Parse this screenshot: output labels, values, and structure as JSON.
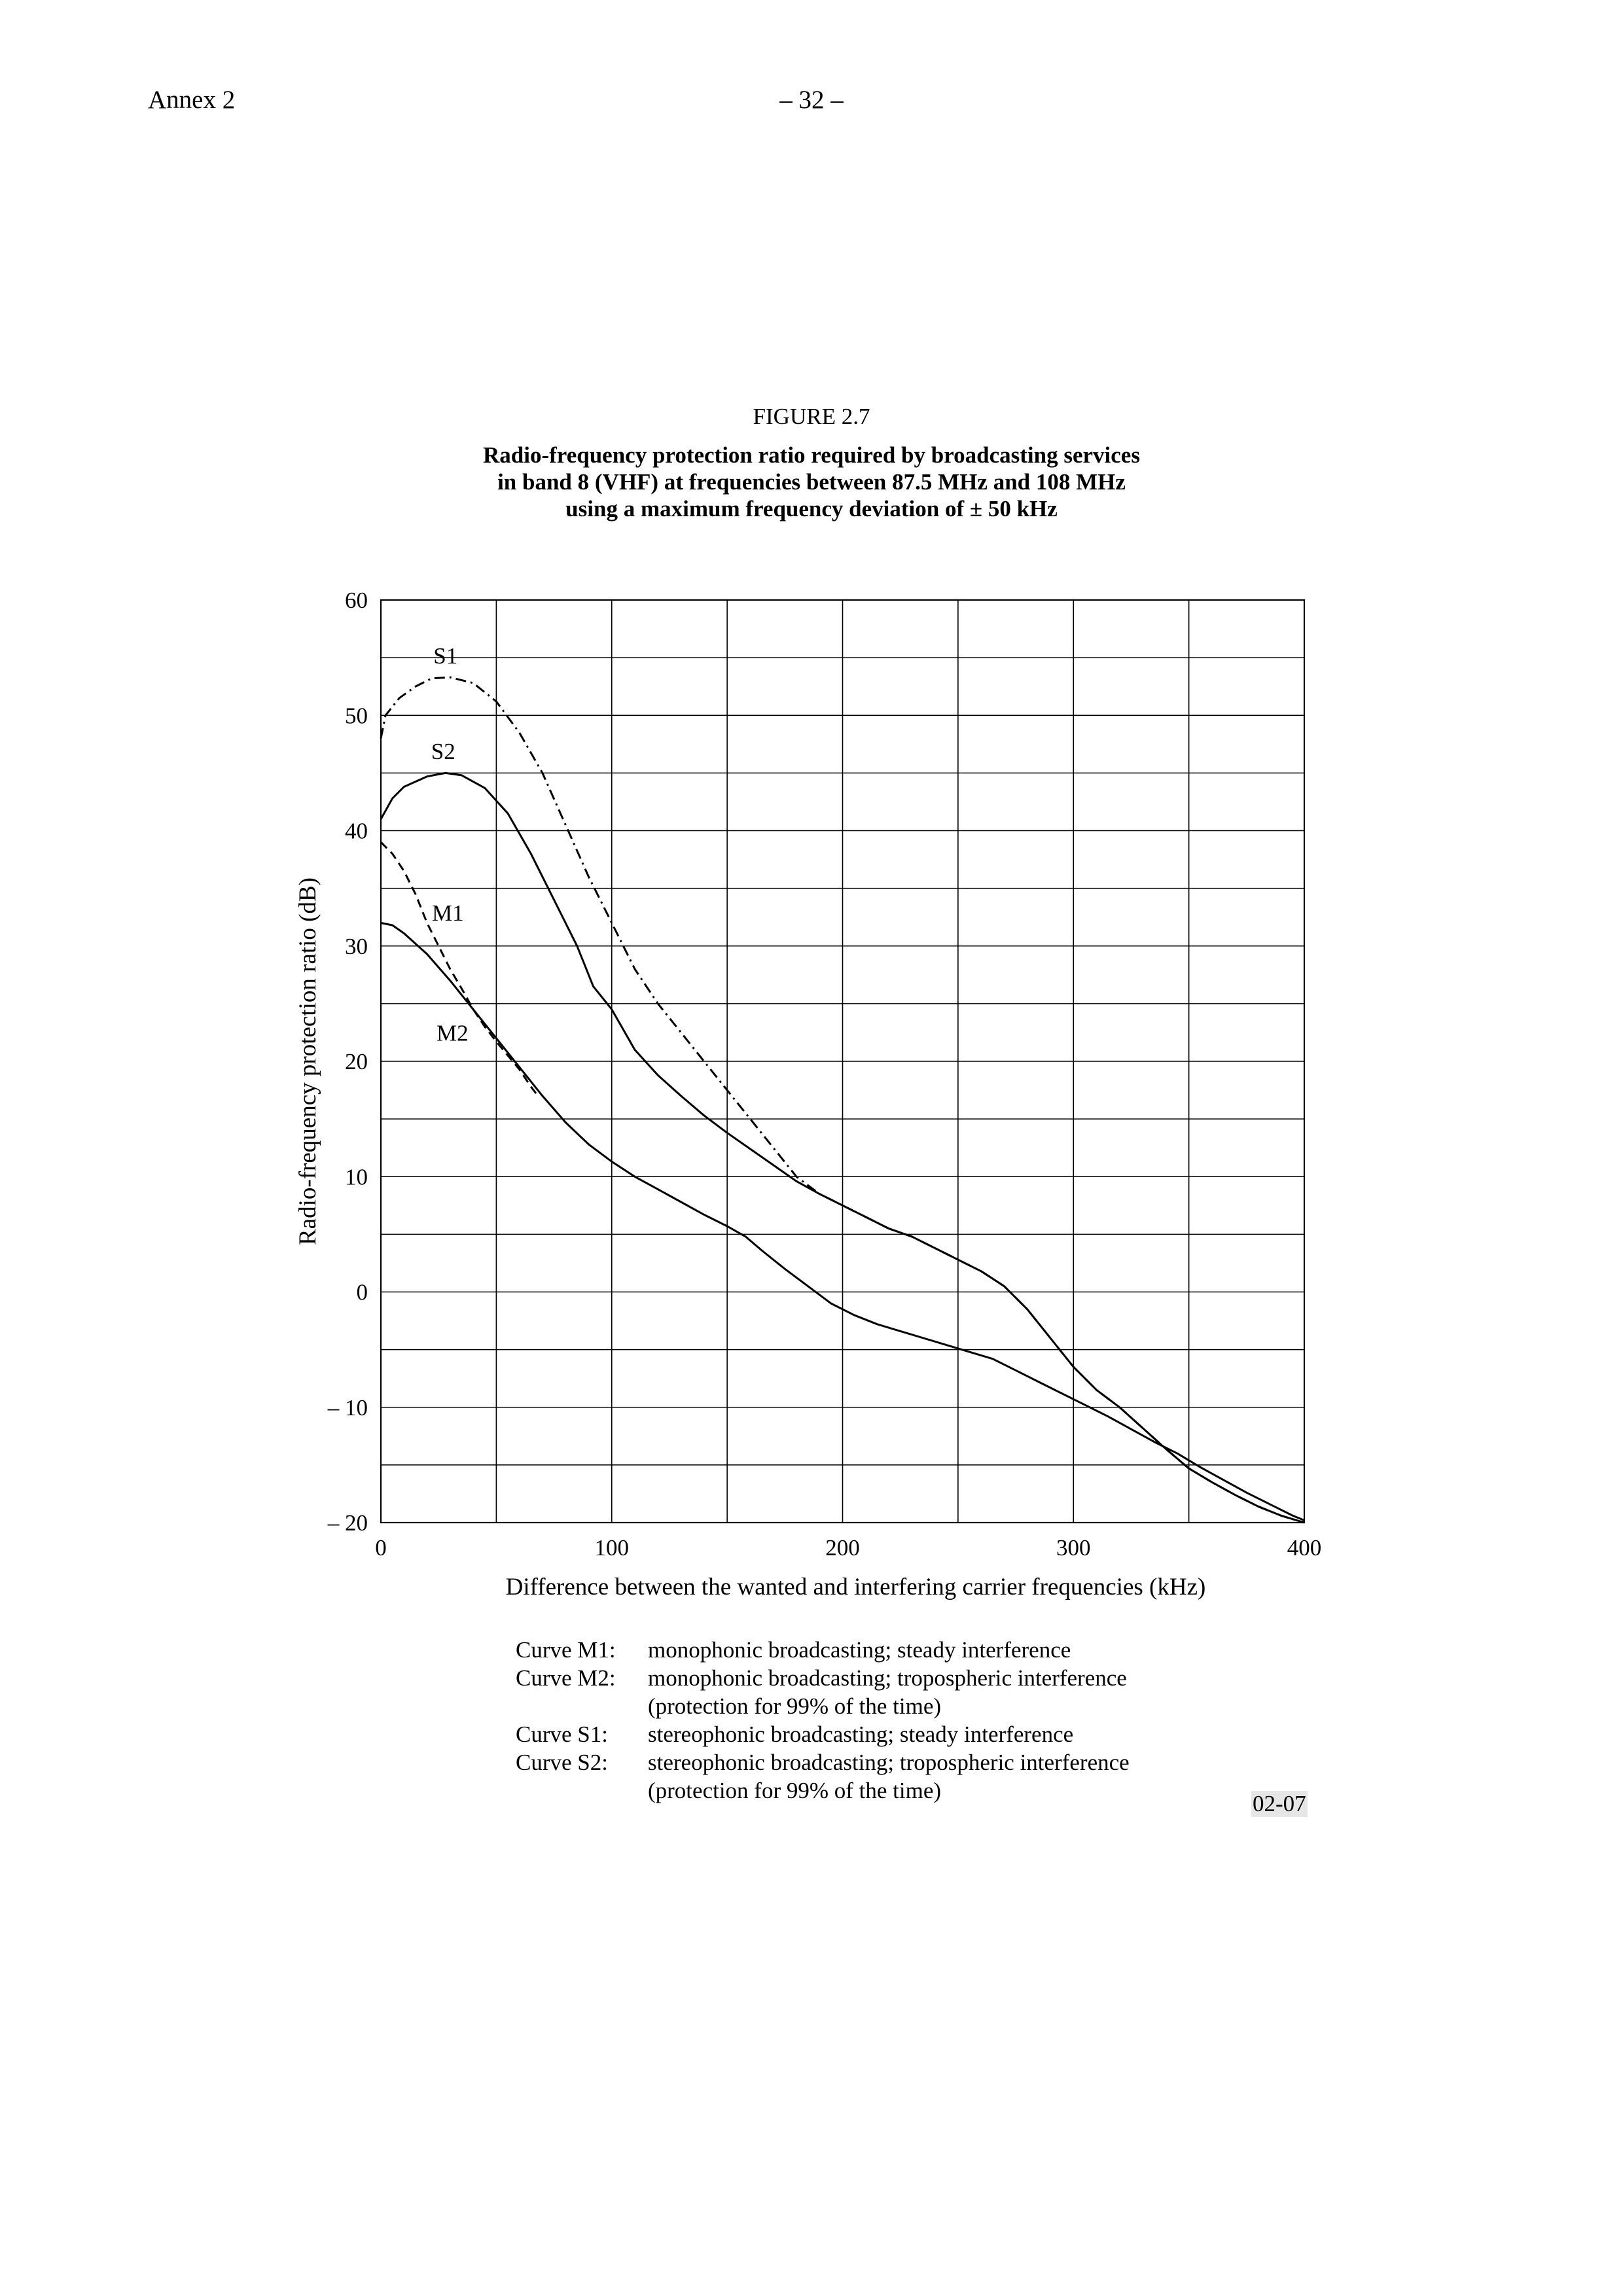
{
  "header": {
    "annex": "Annex 2",
    "page": "– 32 –"
  },
  "figure": {
    "number": "FIGURE 2.7",
    "title_lines": [
      "Radio-frequency protection ratio required by broadcasting services",
      "in band 8 (VHF) at frequencies between 87.5 MHz and 108 MHz",
      "using a maximum frequency deviation of ± 50 kHz"
    ],
    "code": "02-07"
  },
  "chart_data": {
    "type": "line",
    "xlabel": "Difference between the wanted and interfering carrier frequencies (kHz)",
    "ylabel": "Radio-frequency protection ratio (dB)",
    "xlim": [
      0,
      400
    ],
    "ylim": [
      -20,
      60
    ],
    "x_ticks": [
      0,
      100,
      200,
      300,
      400
    ],
    "y_ticks": [
      60,
      50,
      40,
      30,
      20,
      10,
      0,
      -10,
      -20
    ],
    "y_tick_labels": [
      "60",
      "50",
      "40",
      "30",
      "20",
      "10",
      "0",
      "– 10",
      "– 20"
    ],
    "x_grid_step": 50,
    "y_grid_step": 5,
    "grid": true,
    "series": [
      {
        "name": "S1",
        "style": "dash-dot",
        "points": [
          [
            0,
            48
          ],
          [
            2,
            50
          ],
          [
            8,
            51.5
          ],
          [
            15,
            52.5
          ],
          [
            22,
            53.2
          ],
          [
            30,
            53.3
          ],
          [
            40,
            52.8
          ],
          [
            50,
            51.2
          ],
          [
            60,
            48.5
          ],
          [
            70,
            45
          ],
          [
            80,
            40.5
          ],
          [
            90,
            36
          ],
          [
            100,
            32
          ],
          [
            110,
            28
          ],
          [
            120,
            25
          ],
          [
            130,
            22.5
          ],
          [
            140,
            20
          ],
          [
            150,
            17.5
          ],
          [
            160,
            15
          ],
          [
            170,
            12.5
          ],
          [
            180,
            10
          ],
          [
            190,
            8.5
          ],
          [
            200,
            7.5
          ],
          [
            210,
            6.5
          ],
          [
            220,
            5.5
          ],
          [
            230,
            4.8
          ],
          [
            240,
            3.8
          ],
          [
            250,
            2.8
          ],
          [
            260,
            1.8
          ],
          [
            270,
            0.5
          ],
          [
            280,
            -1.5
          ],
          [
            290,
            -4
          ],
          [
            300,
            -6.5
          ],
          [
            310,
            -8.5
          ],
          [
            320,
            -10
          ],
          [
            330,
            -11.8
          ],
          [
            340,
            -13.6
          ],
          [
            350,
            -15.3
          ],
          [
            360,
            -16.5
          ],
          [
            370,
            -17.6
          ],
          [
            380,
            -18.6
          ],
          [
            390,
            -19.4
          ],
          [
            400,
            -20
          ]
        ]
      },
      {
        "name": "S2",
        "style": "solid",
        "points": [
          [
            0,
            41
          ],
          [
            5,
            42.8
          ],
          [
            10,
            43.8
          ],
          [
            20,
            44.7
          ],
          [
            28,
            45
          ],
          [
            35,
            44.8
          ],
          [
            45,
            43.7
          ],
          [
            55,
            41.5
          ],
          [
            65,
            38
          ],
          [
            75,
            34
          ],
          [
            85,
            30
          ],
          [
            92,
            26.5
          ],
          [
            100,
            24.5
          ],
          [
            110,
            21
          ],
          [
            120,
            18.8
          ],
          [
            130,
            17
          ],
          [
            140,
            15.3
          ],
          [
            150,
            13.8
          ],
          [
            160,
            12.4
          ],
          [
            170,
            11
          ],
          [
            180,
            9.6
          ],
          [
            190,
            8.5
          ],
          [
            200,
            7.5
          ],
          [
            210,
            6.5
          ],
          [
            220,
            5.5
          ],
          [
            230,
            4.8
          ],
          [
            240,
            3.8
          ],
          [
            250,
            2.8
          ],
          [
            260,
            1.8
          ],
          [
            270,
            0.5
          ],
          [
            280,
            -1.5
          ],
          [
            290,
            -4
          ],
          [
            300,
            -6.5
          ],
          [
            310,
            -8.5
          ],
          [
            320,
            -10
          ],
          [
            330,
            -11.8
          ],
          [
            340,
            -13.6
          ],
          [
            350,
            -15.3
          ],
          [
            360,
            -16.5
          ],
          [
            370,
            -17.6
          ],
          [
            380,
            -18.6
          ],
          [
            390,
            -19.4
          ],
          [
            400,
            -20
          ]
        ]
      },
      {
        "name": "M1",
        "style": "dashed",
        "points": [
          [
            0,
            39
          ],
          [
            5,
            38
          ],
          [
            10,
            36.5
          ],
          [
            15,
            34.5
          ],
          [
            20,
            32
          ],
          [
            25,
            30
          ],
          [
            30,
            28
          ],
          [
            35,
            26.3
          ],
          [
            40,
            24.5
          ],
          [
            45,
            23
          ],
          [
            50,
            21.7
          ],
          [
            55,
            20.5
          ],
          [
            60,
            19.3
          ],
          [
            65,
            17.8
          ],
          [
            68,
            17
          ]
        ]
      },
      {
        "name": "M2",
        "style": "solid",
        "points": [
          [
            0,
            32
          ],
          [
            5,
            31.8
          ],
          [
            10,
            31.1
          ],
          [
            20,
            29.3
          ],
          [
            30,
            27
          ],
          [
            40,
            24.5
          ],
          [
            50,
            22
          ],
          [
            60,
            19.5
          ],
          [
            70,
            17
          ],
          [
            80,
            14.7
          ],
          [
            90,
            12.8
          ],
          [
            100,
            11.3
          ],
          [
            110,
            10
          ],
          [
            120,
            8.9
          ],
          [
            130,
            7.8
          ],
          [
            140,
            6.7
          ],
          [
            150,
            5.7
          ],
          [
            158,
            4.8
          ],
          [
            165,
            3.6
          ],
          [
            175,
            2
          ],
          [
            185,
            0.5
          ],
          [
            195,
            -1
          ],
          [
            205,
            -2
          ],
          [
            215,
            -2.8
          ],
          [
            225,
            -3.4
          ],
          [
            235,
            -4
          ],
          [
            245,
            -4.6
          ],
          [
            255,
            -5.2
          ],
          [
            265,
            -5.8
          ],
          [
            275,
            -6.8
          ],
          [
            285,
            -7.8
          ],
          [
            295,
            -8.8
          ],
          [
            305,
            -9.8
          ],
          [
            315,
            -10.8
          ],
          [
            325,
            -11.9
          ],
          [
            335,
            -13
          ],
          [
            345,
            -14
          ],
          [
            355,
            -15.2
          ],
          [
            365,
            -16.3
          ],
          [
            375,
            -17.4
          ],
          [
            385,
            -18.4
          ],
          [
            395,
            -19.4
          ],
          [
            400,
            -19.8
          ]
        ]
      }
    ],
    "curve_labels": [
      {
        "text": "S1",
        "x": 28,
        "y": 54.5
      },
      {
        "text": "S2",
        "x": 27,
        "y": 46.2
      },
      {
        "text": "M1",
        "x": 29,
        "y": 32.2
      },
      {
        "text": "M2",
        "x": 31,
        "y": 21.8
      }
    ],
    "legend": [
      {
        "key": "Curve M1:",
        "lines": [
          "monophonic broadcasting; steady interference"
        ]
      },
      {
        "key": "Curve M2:",
        "lines": [
          "monophonic broadcasting; tropospheric interference",
          "(protection for 99% of the time)"
        ]
      },
      {
        "key": "Curve S1:",
        "lines": [
          "stereophonic broadcasting; steady interference"
        ]
      },
      {
        "key": "Curve S2:",
        "lines": [
          "stereophonic broadcasting; tropospheric interference",
          "(protection for 99% of the time)"
        ]
      }
    ]
  }
}
